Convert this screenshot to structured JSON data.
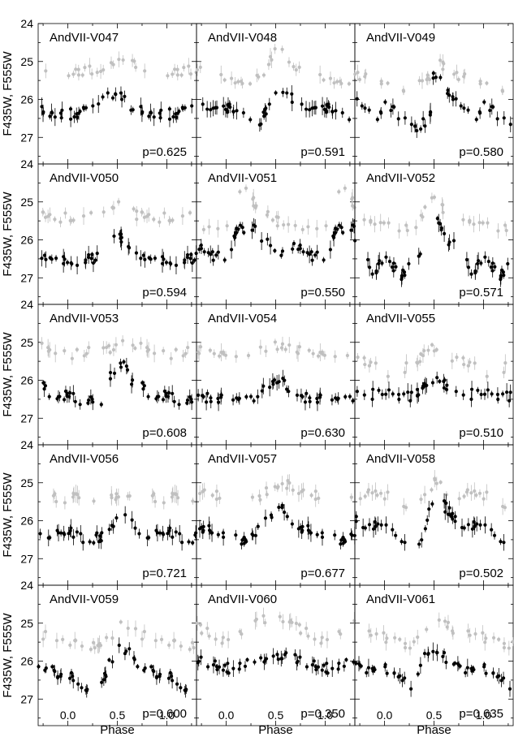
{
  "chart_data": {
    "type": "scatter",
    "layout": "grid 5 rows x 3 columns of light-curve panels",
    "xlabel": "Phase",
    "ylabel": "F435W, F555W",
    "xlim": [
      -0.3,
      1.3
    ],
    "ylim_inverted": [
      27.7,
      24.0
    ],
    "x_ticks": [
      "0.0",
      "0.5",
      "1.0"
    ],
    "y_ticks": [
      "24",
      "25",
      "26",
      "27"
    ],
    "series_colors": {
      "F435W": "#000000",
      "F555W": "#c0c0c0"
    },
    "panels": [
      {
        "name": "AndVII-V047",
        "period": "p=0.625",
        "anchors": {
          "black": [
            [
              0,
              26.4
            ],
            [
              0.15,
              26.3
            ],
            [
              0.3,
              26.1
            ],
            [
              0.45,
              25.9
            ],
            [
              0.55,
              25.9
            ],
            [
              0.6,
              26.2
            ],
            [
              0.75,
              26.3
            ],
            [
              1,
              26.4
            ]
          ],
          "gray": [
            [
              0,
              25.3
            ],
            [
              0.4,
              25.2
            ],
            [
              0.5,
              24.9
            ],
            [
              0.6,
              25.0
            ],
            [
              0.8,
              25.2
            ],
            [
              1,
              25.3
            ]
          ]
        }
      },
      {
        "name": "AndVII-V048",
        "period": "p=0.591",
        "anchors": {
          "black": [
            [
              0,
              26.2
            ],
            [
              0.2,
              26.5
            ],
            [
              0.35,
              26.6
            ],
            [
              0.4,
              26.3
            ],
            [
              0.55,
              25.8
            ],
            [
              0.7,
              26.0
            ],
            [
              0.85,
              26.2
            ],
            [
              1,
              26.3
            ]
          ],
          "gray": [
            [
              0,
              25.5
            ],
            [
              0.25,
              25.6
            ],
            [
              0.4,
              25.3
            ],
            [
              0.5,
              24.6
            ],
            [
              0.7,
              25.2
            ],
            [
              1,
              25.5
            ]
          ]
        }
      },
      {
        "name": "AndVII-V049",
        "period": "p=0.580",
        "anchors": {
          "black": [
            [
              0,
              26.1
            ],
            [
              0.1,
              26.3
            ],
            [
              0.3,
              26.7
            ],
            [
              0.45,
              26.6
            ],
            [
              0.5,
              25.3
            ],
            [
              0.6,
              25.7
            ],
            [
              0.8,
              26.3
            ],
            [
              1,
              26.5
            ]
          ],
          "gray": [
            [
              0,
              25.6
            ],
            [
              0.3,
              25.7
            ],
            [
              0.45,
              25.4
            ],
            [
              0.5,
              24.8
            ],
            [
              0.6,
              25.2
            ],
            [
              1,
              25.6
            ]
          ]
        }
      },
      {
        "name": "AndVII-V050",
        "period": "p=0.594",
        "anchors": {
          "black": [
            [
              0,
              26.6
            ],
            [
              0.25,
              26.5
            ],
            [
              0.4,
              26.2
            ],
            [
              0.5,
              25.8
            ],
            [
              0.6,
              26.1
            ],
            [
              0.8,
              26.5
            ],
            [
              1,
              26.6
            ]
          ],
          "gray": [
            [
              0,
              25.4
            ],
            [
              0.4,
              25.2
            ],
            [
              0.5,
              25.0
            ],
            [
              0.65,
              25.3
            ],
            [
              0.8,
              25.4
            ],
            [
              1,
              25.4
            ]
          ]
        }
      },
      {
        "name": "AndVII-V051",
        "period": "p=0.550",
        "anchors": {
          "black": [
            [
              0,
              26.5
            ],
            [
              0.1,
              25.8
            ],
            [
              0.25,
              25.6
            ],
            [
              0.4,
              26.1
            ],
            [
              0.55,
              26.3
            ],
            [
              0.7,
              26.2
            ],
            [
              0.85,
              26.4
            ],
            [
              1,
              26.5
            ]
          ],
          "gray": [
            [
              0,
              25.6
            ],
            [
              0.1,
              24.8
            ],
            [
              0.2,
              24.7
            ],
            [
              0.35,
              25.3
            ],
            [
              0.6,
              25.6
            ],
            [
              1,
              25.6
            ]
          ]
        }
      },
      {
        "name": "AndVII-V052",
        "period": "p=0.571",
        "anchors": {
          "black": [
            [
              0,
              26.4
            ],
            [
              0.1,
              26.7
            ],
            [
              0.15,
              27.0
            ],
            [
              0.35,
              26.5
            ],
            [
              0.45,
              25.8
            ],
            [
              0.5,
              25.2
            ],
            [
              0.6,
              25.9
            ],
            [
              0.8,
              26.3
            ],
            [
              0.9,
              26.9
            ],
            [
              1,
              26.4
            ]
          ],
          "gray": [
            [
              0,
              25.6
            ],
            [
              0.3,
              25.7
            ],
            [
              0.4,
              25.3
            ],
            [
              0.5,
              24.8
            ],
            [
              0.6,
              25.2
            ],
            [
              1,
              25.6
            ]
          ]
        }
      },
      {
        "name": "AndVII-V053",
        "period": "p=0.608",
        "anchors": {
          "black": [
            [
              0,
              26.4
            ],
            [
              0.2,
              26.6
            ],
            [
              0.35,
              26.5
            ],
            [
              0.45,
              25.8
            ],
            [
              0.55,
              25.5
            ],
            [
              0.65,
              26.0
            ],
            [
              0.8,
              26.3
            ],
            [
              1,
              26.4
            ]
          ],
          "gray": [
            [
              0,
              25.3
            ],
            [
              0.45,
              25.2
            ],
            [
              0.55,
              25.0
            ],
            [
              0.7,
              25.1
            ],
            [
              1,
              25.3
            ]
          ]
        }
      },
      {
        "name": "AndVII-V054",
        "period": "p=0.630",
        "anchors": {
          "black": [
            [
              0,
              26.5
            ],
            [
              0.3,
              26.4
            ],
            [
              0.4,
              26.1
            ],
            [
              0.55,
              25.9
            ],
            [
              0.65,
              26.3
            ],
            [
              0.85,
              26.5
            ],
            [
              1,
              26.5
            ]
          ],
          "gray": [
            [
              0,
              25.3
            ],
            [
              0.3,
              25.2
            ],
            [
              0.5,
              25.1
            ],
            [
              0.7,
              25.2
            ],
            [
              1,
              25.3
            ]
          ]
        }
      },
      {
        "name": "AndVII-V055",
        "period": "p=0.510",
        "anchors": {
          "black": [
            [
              0,
              26.3
            ],
            [
              0.2,
              26.5
            ],
            [
              0.35,
              26.3
            ],
            [
              0.5,
              25.9
            ],
            [
              0.6,
              26.1
            ],
            [
              0.8,
              26.4
            ],
            [
              1,
              26.3
            ]
          ],
          "gray": [
            [
              0,
              25.8
            ],
            [
              0.3,
              25.6
            ],
            [
              0.5,
              25.1
            ],
            [
              0.7,
              25.4
            ],
            [
              1,
              25.8
            ]
          ]
        }
      },
      {
        "name": "AndVII-V056",
        "period": "p=0.721",
        "anchors": {
          "black": [
            [
              0,
              26.3
            ],
            [
              0.2,
              26.5
            ],
            [
              0.35,
              26.4
            ],
            [
              0.5,
              25.9
            ],
            [
              0.6,
              26.0
            ],
            [
              0.7,
              26.2
            ],
            [
              0.85,
              26.4
            ],
            [
              1,
              26.3
            ]
          ],
          "gray": [
            [
              0,
              25.4
            ],
            [
              0.3,
              25.5
            ],
            [
              0.5,
              25.3
            ],
            [
              0.7,
              25.3
            ],
            [
              1,
              25.4
            ]
          ]
        }
      },
      {
        "name": "AndVII-V057",
        "period": "p=0.677",
        "anchors": {
          "black": [
            [
              0,
              26.4
            ],
            [
              0.2,
              26.5
            ],
            [
              0.3,
              26.3
            ],
            [
              0.45,
              25.9
            ],
            [
              0.55,
              25.6
            ],
            [
              0.65,
              26.0
            ],
            [
              0.85,
              26.3
            ],
            [
              1,
              26.4
            ]
          ],
          "gray": [
            [
              0,
              25.4
            ],
            [
              0.3,
              25.4
            ],
            [
              0.45,
              25.2
            ],
            [
              0.6,
              25.0
            ],
            [
              0.8,
              25.3
            ],
            [
              1,
              25.4
            ]
          ]
        }
      },
      {
        "name": "AndVII-V058",
        "period": "p=0.502",
        "anchors": {
          "black": [
            [
              0,
              26.0
            ],
            [
              0.15,
              26.6
            ],
            [
              0.3,
              26.7
            ],
            [
              0.4,
              26.3
            ],
            [
              0.5,
              25.3
            ],
            [
              0.6,
              25.6
            ],
            [
              0.8,
              26.2
            ],
            [
              1,
              26.0
            ]
          ],
          "gray": [
            [
              0,
              25.3
            ],
            [
              0.2,
              25.6
            ],
            [
              0.35,
              25.5
            ],
            [
              0.5,
              25.0
            ],
            [
              0.7,
              25.3
            ],
            [
              1,
              25.3
            ]
          ]
        }
      },
      {
        "name": "AndVII-V059",
        "period": "p=0.600",
        "anchors": {
          "black": [
            [
              0,
              26.3
            ],
            [
              0.15,
              26.6
            ],
            [
              0.3,
              26.8
            ],
            [
              0.45,
              25.9
            ],
            [
              0.55,
              25.6
            ],
            [
              0.7,
              26.0
            ],
            [
              0.85,
              26.3
            ],
            [
              1,
              26.3
            ]
          ],
          "gray": [
            [
              0,
              25.5
            ],
            [
              0.2,
              25.6
            ],
            [
              0.4,
              25.4
            ],
            [
              0.55,
              25.0
            ],
            [
              0.75,
              25.3
            ],
            [
              1,
              25.5
            ]
          ]
        }
      },
      {
        "name": "AndVII-V060",
        "period": "p=0.350",
        "anchors": {
          "black": [
            [
              0,
              26.2
            ],
            [
              0.2,
              26.1
            ],
            [
              0.4,
              25.9
            ],
            [
              0.5,
              25.8
            ],
            [
              0.65,
              25.9
            ],
            [
              0.85,
              26.1
            ],
            [
              1,
              26.2
            ]
          ],
          "gray": [
            [
              0,
              25.5
            ],
            [
              0.25,
              25.0
            ],
            [
              0.45,
              24.9
            ],
            [
              0.65,
              25.0
            ],
            [
              0.85,
              25.3
            ],
            [
              1,
              25.5
            ]
          ]
        }
      },
      {
        "name": "AndVII-V061",
        "period": "p=0.635",
        "anchors": {
          "black": [
            [
              0,
              26.2
            ],
            [
              0.2,
              26.5
            ],
            [
              0.3,
              26.7
            ],
            [
              0.4,
              25.9
            ],
            [
              0.5,
              25.7
            ],
            [
              0.65,
              26.0
            ],
            [
              0.85,
              26.3
            ],
            [
              1,
              26.2
            ]
          ],
          "gray": [
            [
              0,
              25.4
            ],
            [
              0.25,
              25.6
            ],
            [
              0.4,
              25.2
            ],
            [
              0.55,
              24.8
            ],
            [
              0.7,
              25.2
            ],
            [
              1,
              25.4
            ]
          ]
        }
      }
    ]
  }
}
